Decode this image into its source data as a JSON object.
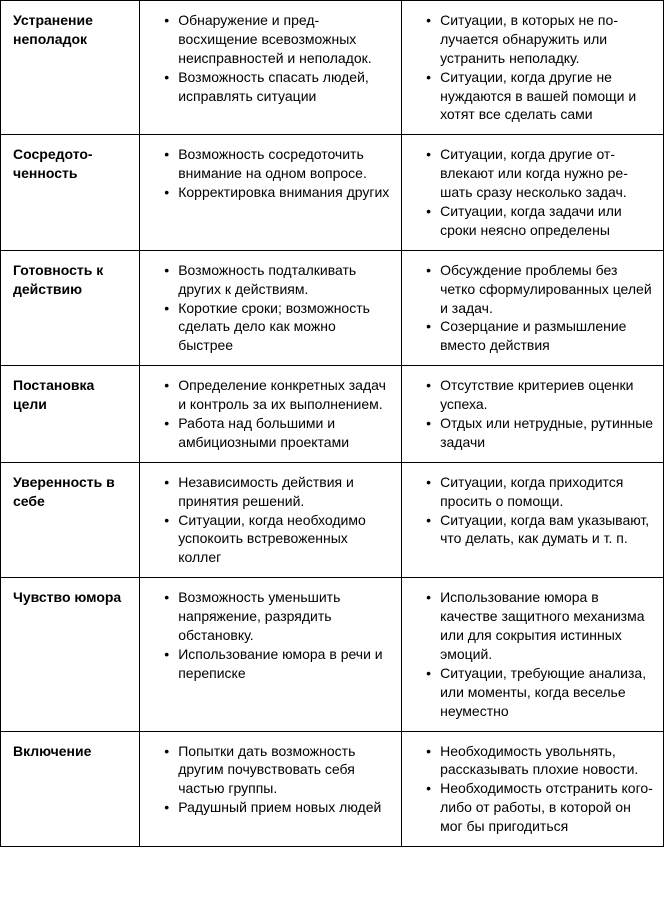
{
  "table": {
    "background_color": "#ffffff",
    "border_color": "#000000",
    "text_color": "#000000",
    "font_size": 14,
    "columns": [
      "label",
      "positives",
      "negatives"
    ],
    "rows": [
      {
        "label": "Устранение неполадок",
        "positives": [
          "Обнаружение и пред­восхищение всевозмож­ных неисправностей и неполадок.",
          "Возможность спасать лю­дей, исправлять ситуации"
        ],
        "negatives": [
          "Ситуации, в которых не по­лучается обнаружить или устранить неполадку.",
          "Ситуации, когда другие не нуждаются в вашей помощи и хотят все сделать сами"
        ]
      },
      {
        "label": "Сосредото­ченность",
        "positives": [
          "Возможность сосредото­чить внимание на одном вопросе.",
          "Корректировка внимания других"
        ],
        "negatives": [
          "Ситуации, когда другие от­влекают или когда нужно ре­шать сразу несколько задач.",
          "Ситуации, когда за­дачи или сроки неясно определены"
        ]
      },
      {
        "label": "Готовность к действию",
        "positives": [
          "Возможность подталки­вать других к действиям.",
          "Короткие сроки; возмож­ность сделать дело как можно быстрее"
        ],
        "negatives": [
          "Обсуждение проблемы без четко сформулированных целей и задач.",
          "Созерцание и размышле­ние вместо действия"
        ]
      },
      {
        "label": "Постановка цели",
        "positives": [
          "Определение конкретных задач и контроль за их выполнением.",
          "Работа над большими и амбициозными проектами"
        ],
        "negatives": [
          "Отсутствие критериев оценки успеха.",
          "Отдых или нетрудные, ру­тинные задачи"
        ]
      },
      {
        "label": "Уверенность в себе",
        "positives": [
          "Независимость действия и принятия решений.",
          "Ситуации, когда необхо­димо успокоить встрево­женных коллег"
        ],
        "negatives": [
          "Ситуации, когда прихо­дится просить о помощи.",
          "Ситуации, когда вам ука­зывают, что делать, как думать и т. п."
        ]
      },
      {
        "label": "Чувство юмора",
        "positives": [
          "Возможность уменьшить напряжение, разрядить обстановку.",
          "Использование юмора в речи и переписке"
        ],
        "negatives": [
          "Использование юмора в качестве защитного ме­ханизма или для сокрытия истинных эмоций.",
          "Ситуации, требующие ана­лиза, или моменты, когда веселье неуместно"
        ]
      },
      {
        "label": "Включение",
        "positives": [
          "Попытки дать возмож­ность другим почувство­вать себя частью группы.",
          "Радушный прием новых людей"
        ],
        "negatives": [
          "Необходимость уволь­нять, рассказывать плохие новости.",
          "Необходимость отстра­нить кого-либо от работы, в которой он мог бы пригодиться"
        ]
      }
    ]
  }
}
